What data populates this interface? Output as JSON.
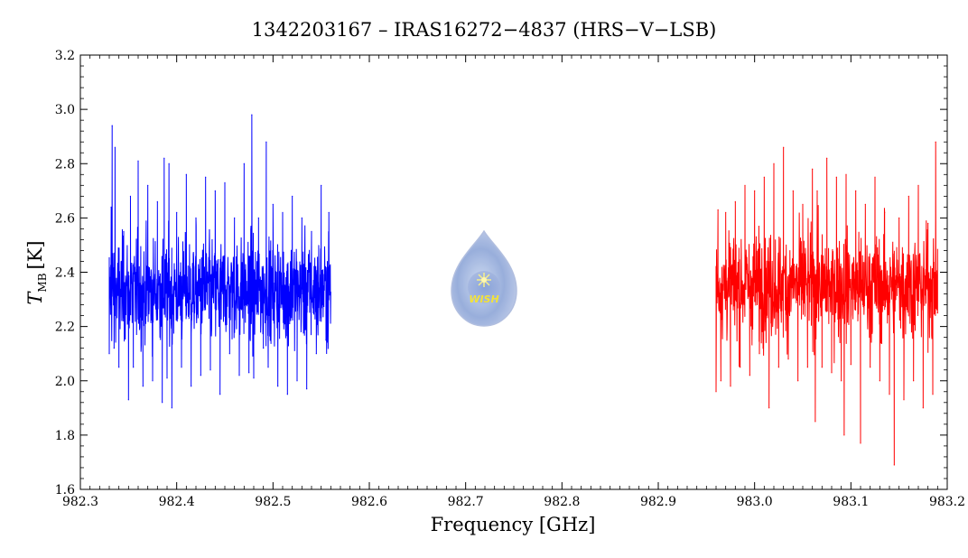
{
  "chart_data": {
    "type": "line",
    "title": "1342203167 – IRAS16272−4837 (HRS−V−LSB)",
    "xlabel": "Frequency [GHz]",
    "ylabel": "T",
    "ylabel_subscript": "MB",
    "ylabel_unit": "[K]",
    "xlim": [
      982.3,
      983.2
    ],
    "ylim": [
      1.6,
      3.2
    ],
    "x_ticks": [
      "982.3",
      "982.4",
      "982.5",
      "982.6",
      "982.7",
      "982.8",
      "982.9",
      "983.0",
      "983.1",
      "983.2"
    ],
    "y_ticks": [
      "1.6",
      "1.8",
      "2.0",
      "2.2",
      "2.4",
      "2.6",
      "2.8",
      "3.0",
      "3.2"
    ],
    "grid": false,
    "logo_text": "WISH",
    "series": [
      {
        "color": "#0000ff",
        "x_range": [
          982.33,
          982.56
        ],
        "mean": 2.33,
        "points": [
          [
            982.33,
            2.1
          ],
          [
            982.332,
            2.64
          ],
          [
            982.333,
            2.94
          ],
          [
            982.335,
            2.12
          ],
          [
            982.336,
            2.86
          ],
          [
            982.34,
            2.05
          ],
          [
            982.345,
            2.55
          ],
          [
            982.35,
            1.93
          ],
          [
            982.352,
            2.68
          ],
          [
            982.355,
            2.05
          ],
          [
            982.36,
            2.81
          ],
          [
            982.365,
            1.98
          ],
          [
            982.37,
            2.72
          ],
          [
            982.375,
            2.0
          ],
          [
            982.38,
            2.66
          ],
          [
            982.385,
            1.92
          ],
          [
            982.387,
            2.82
          ],
          [
            982.39,
            2.01
          ],
          [
            982.392,
            2.8
          ],
          [
            982.395,
            1.9
          ],
          [
            982.4,
            2.62
          ],
          [
            982.405,
            2.05
          ],
          [
            982.41,
            2.76
          ],
          [
            982.415,
            1.98
          ],
          [
            982.42,
            2.6
          ],
          [
            982.425,
            2.02
          ],
          [
            982.43,
            2.75
          ],
          [
            982.435,
            2.04
          ],
          [
            982.44,
            2.7
          ],
          [
            982.445,
            1.95
          ],
          [
            982.45,
            2.73
          ],
          [
            982.455,
            2.1
          ],
          [
            982.46,
            2.6
          ],
          [
            982.465,
            2.02
          ],
          [
            982.47,
            2.8
          ],
          [
            982.475,
            2.03
          ],
          [
            982.478,
            2.98
          ],
          [
            982.48,
            2.01
          ],
          [
            982.485,
            2.6
          ],
          [
            982.49,
            2.12
          ],
          [
            982.493,
            2.88
          ],
          [
            982.495,
            2.05
          ],
          [
            982.5,
            2.65
          ],
          [
            982.505,
            1.98
          ],
          [
            982.51,
            2.62
          ],
          [
            982.515,
            1.95
          ],
          [
            982.52,
            2.68
          ],
          [
            982.525,
            2.0
          ],
          [
            982.53,
            2.6
          ],
          [
            982.535,
            1.97
          ],
          [
            982.54,
            2.55
          ],
          [
            982.545,
            2.1
          ],
          [
            982.55,
            2.72
          ],
          [
            982.555,
            2.15
          ],
          [
            982.558,
            2.62
          ]
        ]
      },
      {
        "color": "#ff0000",
        "x_range": [
          982.96,
          983.19
        ],
        "mean": 2.35,
        "points": [
          [
            982.96,
            1.96
          ],
          [
            982.962,
            2.63
          ],
          [
            982.965,
            2.0
          ],
          [
            982.97,
            2.62
          ],
          [
            982.975,
            1.98
          ],
          [
            982.98,
            2.66
          ],
          [
            982.985,
            2.05
          ],
          [
            982.99,
            2.72
          ],
          [
            982.995,
            2.02
          ],
          [
            983.0,
            2.7
          ],
          [
            983.005,
            2.1
          ],
          [
            983.01,
            2.75
          ],
          [
            983.015,
            1.9
          ],
          [
            983.02,
            2.8
          ],
          [
            983.025,
            2.05
          ],
          [
            983.03,
            2.86
          ],
          [
            983.035,
            2.08
          ],
          [
            983.04,
            2.7
          ],
          [
            983.045,
            2.0
          ],
          [
            983.05,
            2.65
          ],
          [
            983.055,
            2.05
          ],
          [
            983.06,
            2.78
          ],
          [
            983.063,
            1.85
          ],
          [
            983.065,
            2.7
          ],
          [
            983.07,
            2.05
          ],
          [
            983.075,
            2.82
          ],
          [
            983.08,
            2.03
          ],
          [
            983.085,
            2.75
          ],
          [
            983.09,
            2.0
          ],
          [
            983.093,
            1.8
          ],
          [
            983.095,
            2.76
          ],
          [
            983.1,
            2.06
          ],
          [
            983.105,
            2.7
          ],
          [
            983.11,
            1.77
          ],
          [
            983.115,
            2.65
          ],
          [
            983.12,
            2.05
          ],
          [
            983.125,
            2.75
          ],
          [
            983.13,
            2.0
          ],
          [
            983.135,
            2.62
          ],
          [
            983.14,
            1.95
          ],
          [
            983.145,
            1.69
          ],
          [
            983.15,
            2.6
          ],
          [
            983.155,
            1.93
          ],
          [
            983.16,
            2.68
          ],
          [
            983.165,
            2.0
          ],
          [
            983.17,
            2.72
          ],
          [
            983.175,
            1.9
          ],
          [
            983.18,
            2.58
          ],
          [
            983.185,
            1.95
          ],
          [
            983.188,
            2.88
          ],
          [
            983.19,
            2.25
          ]
        ]
      }
    ]
  }
}
